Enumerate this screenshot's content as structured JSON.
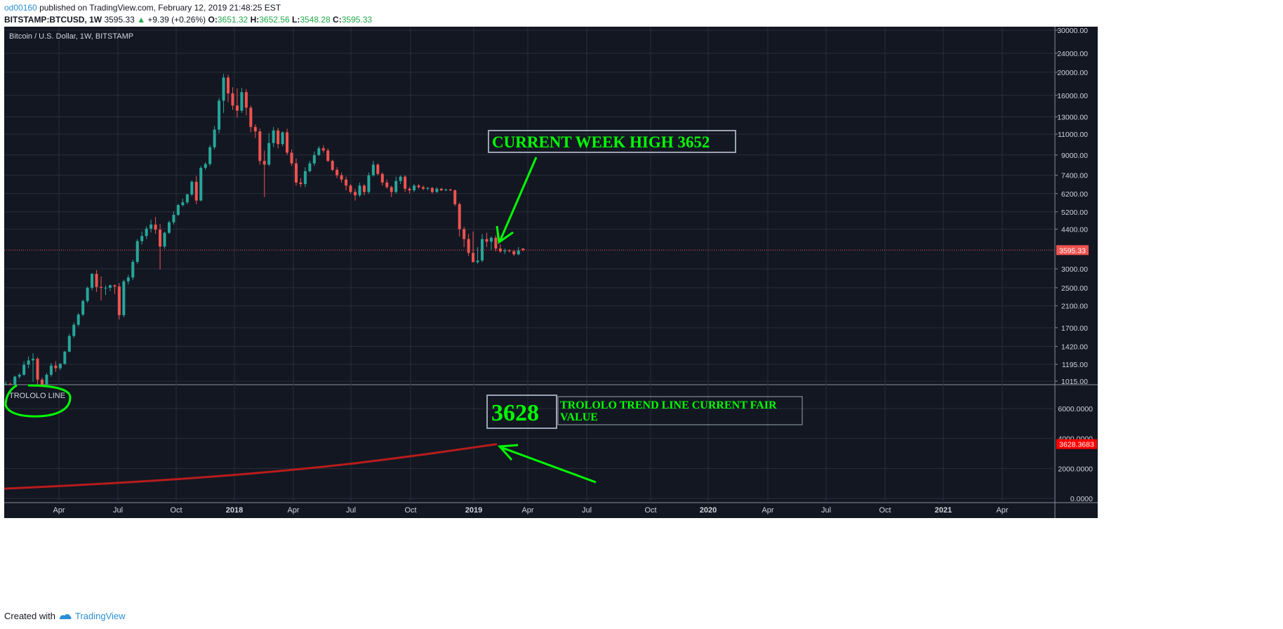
{
  "header": {
    "username": "od00160",
    "published_text": "published on TradingView.com, February 12, 2019 21:48:25 EST",
    "symbol": "BITSTAMP:BTCUSD, 1W",
    "price": "3595.33",
    "change": "+9.39 (+0.26%)",
    "o_label": "O:",
    "o_value": "3651.32",
    "h_label": "H:",
    "h_value": "3652.56",
    "l_label": "L:",
    "l_value": "3548.28",
    "c_label": "C:",
    "c_value": "3595.33"
  },
  "footer": {
    "created_with": "Created with",
    "brand": "TradingView"
  },
  "colors": {
    "background": "#131722",
    "grid": "#2a2e39",
    "up": "#26a69a",
    "down": "#ef5350",
    "annotation": "#00ff00",
    "trend_line": "#b71c1c",
    "price_tag": "#ef5350",
    "trend_tag": "#ff0000"
  },
  "chart_data": [
    {
      "type": "candlestick",
      "title": "Bitcoin / U.S. Dollar, 1W, BITSTAMP",
      "y_scale": "log",
      "y_ticks": [
        "30000.00",
        "24000.00",
        "20000.00",
        "16000.00",
        "13000.00",
        "11000.00",
        "9000.00",
        "7400.00",
        "6200.00",
        "5200.00",
        "4400.00",
        "3000.00",
        "2500.00",
        "2100.00",
        "1700.00",
        "1420.00",
        "1195.00",
        "1015.00"
      ],
      "x_ticks": [
        "Apr",
        "Jul",
        "Oct",
        "2018",
        "Apr",
        "Jul",
        "Oct",
        "2019",
        "Apr",
        "Jul",
        "Oct",
        "2020",
        "Apr",
        "Jul",
        "Oct",
        "2021",
        "Apr"
      ],
      "last_price_label": "3595.33",
      "annotation_text": "CURRENT WEEK HIGH 3652",
      "candles": [
        {
          "o": 960,
          "h": 1010,
          "l": 930,
          "c": 990
        },
        {
          "o": 990,
          "h": 1000,
          "l": 940,
          "c": 970
        },
        {
          "o": 970,
          "h": 1070,
          "l": 960,
          "c": 1060
        },
        {
          "o": 1060,
          "h": 1100,
          "l": 1040,
          "c": 1080
        },
        {
          "o": 1080,
          "h": 1230,
          "l": 1070,
          "c": 1190
        },
        {
          "o": 1190,
          "h": 1290,
          "l": 1150,
          "c": 1240
        },
        {
          "o": 1240,
          "h": 1330,
          "l": 1010,
          "c": 1260
        },
        {
          "o": 1260,
          "h": 1280,
          "l": 960,
          "c": 1030
        },
        {
          "o": 1030,
          "h": 1050,
          "l": 890,
          "c": 960
        },
        {
          "o": 960,
          "h": 1100,
          "l": 930,
          "c": 1080
        },
        {
          "o": 1080,
          "h": 1210,
          "l": 1060,
          "c": 1180
        },
        {
          "o": 1180,
          "h": 1230,
          "l": 1110,
          "c": 1150
        },
        {
          "o": 1150,
          "h": 1210,
          "l": 1130,
          "c": 1200
        },
        {
          "o": 1200,
          "h": 1360,
          "l": 1190,
          "c": 1350
        },
        {
          "o": 1350,
          "h": 1600,
          "l": 1340,
          "c": 1570
        },
        {
          "o": 1570,
          "h": 1790,
          "l": 1540,
          "c": 1750
        },
        {
          "o": 1750,
          "h": 1960,
          "l": 1720,
          "c": 1930
        },
        {
          "o": 1930,
          "h": 2230,
          "l": 1900,
          "c": 2200
        },
        {
          "o": 2200,
          "h": 2530,
          "l": 2160,
          "c": 2500
        },
        {
          "o": 2500,
          "h": 2880,
          "l": 2440,
          "c": 2860
        },
        {
          "o": 2860,
          "h": 2960,
          "l": 2400,
          "c": 2520
        },
        {
          "o": 2520,
          "h": 2790,
          "l": 2210,
          "c": 2500
        },
        {
          "o": 2500,
          "h": 2560,
          "l": 2330,
          "c": 2500
        },
        {
          "o": 2500,
          "h": 2580,
          "l": 2420,
          "c": 2560
        },
        {
          "o": 2560,
          "h": 2580,
          "l": 2350,
          "c": 2530
        },
        {
          "o": 2530,
          "h": 2620,
          "l": 1840,
          "c": 1920
        },
        {
          "o": 1920,
          "h": 2700,
          "l": 1880,
          "c": 2660
        },
        {
          "o": 2660,
          "h": 2830,
          "l": 2580,
          "c": 2760
        },
        {
          "o": 2760,
          "h": 3280,
          "l": 2690,
          "c": 3210
        },
        {
          "o": 3210,
          "h": 4000,
          "l": 3150,
          "c": 3920
        },
        {
          "o": 3920,
          "h": 4300,
          "l": 3800,
          "c": 4120
        },
        {
          "o": 4120,
          "h": 4520,
          "l": 4000,
          "c": 4420
        },
        {
          "o": 4420,
          "h": 4820,
          "l": 4260,
          "c": 4600
        },
        {
          "o": 4600,
          "h": 4950,
          "l": 4210,
          "c": 4380
        },
        {
          "o": 4380,
          "h": 4620,
          "l": 2980,
          "c": 3720
        },
        {
          "o": 3720,
          "h": 4300,
          "l": 3640,
          "c": 4250
        },
        {
          "o": 4250,
          "h": 4780,
          "l": 4200,
          "c": 4700
        },
        {
          "o": 4700,
          "h": 5220,
          "l": 4600,
          "c": 5050
        },
        {
          "o": 5050,
          "h": 5620,
          "l": 5000,
          "c": 5550
        },
        {
          "o": 5550,
          "h": 5900,
          "l": 5480,
          "c": 5700
        },
        {
          "o": 5700,
          "h": 6200,
          "l": 5600,
          "c": 6150
        },
        {
          "o": 6150,
          "h": 7050,
          "l": 6050,
          "c": 6950
        },
        {
          "o": 6950,
          "h": 7350,
          "l": 5600,
          "c": 5800
        },
        {
          "o": 5800,
          "h": 8100,
          "l": 5750,
          "c": 7950
        },
        {
          "o": 7950,
          "h": 8400,
          "l": 7800,
          "c": 8250
        },
        {
          "o": 8250,
          "h": 9900,
          "l": 8100,
          "c": 9700
        },
        {
          "o": 9700,
          "h": 11900,
          "l": 9500,
          "c": 11500
        },
        {
          "o": 11500,
          "h": 15600,
          "l": 11100,
          "c": 15200
        },
        {
          "o": 15200,
          "h": 19700,
          "l": 13500,
          "c": 19000
        },
        {
          "o": 19000,
          "h": 19500,
          "l": 15000,
          "c": 16300
        },
        {
          "o": 16300,
          "h": 17300,
          "l": 13900,
          "c": 14500
        },
        {
          "o": 14500,
          "h": 17100,
          "l": 12900,
          "c": 13800
        },
        {
          "o": 13800,
          "h": 17200,
          "l": 13500,
          "c": 16500
        },
        {
          "o": 16500,
          "h": 17000,
          "l": 13200,
          "c": 14200
        },
        {
          "o": 14200,
          "h": 14500,
          "l": 11200,
          "c": 11800
        },
        {
          "o": 11800,
          "h": 12100,
          "l": 10600,
          "c": 11300
        },
        {
          "o": 11300,
          "h": 11600,
          "l": 8200,
          "c": 8500
        },
        {
          "o": 8500,
          "h": 9400,
          "l": 6000,
          "c": 8200
        },
        {
          "o": 8200,
          "h": 11100,
          "l": 8100,
          "c": 10100
        },
        {
          "o": 10100,
          "h": 11800,
          "l": 9700,
          "c": 11400
        },
        {
          "o": 11400,
          "h": 11700,
          "l": 9600,
          "c": 10000
        },
        {
          "o": 10000,
          "h": 11300,
          "l": 9800,
          "c": 11200
        },
        {
          "o": 11200,
          "h": 11600,
          "l": 9000,
          "c": 9200
        },
        {
          "o": 9200,
          "h": 9500,
          "l": 8100,
          "c": 8300
        },
        {
          "o": 8300,
          "h": 8700,
          "l": 6700,
          "c": 6900
        },
        {
          "o": 6900,
          "h": 7200,
          "l": 6600,
          "c": 6800
        },
        {
          "o": 6800,
          "h": 8000,
          "l": 6600,
          "c": 7700
        },
        {
          "o": 7700,
          "h": 8500,
          "l": 7600,
          "c": 8300
        },
        {
          "o": 8300,
          "h": 9300,
          "l": 8100,
          "c": 9000
        },
        {
          "o": 9000,
          "h": 9800,
          "l": 8900,
          "c": 9600
        },
        {
          "o": 9600,
          "h": 9900,
          "l": 9200,
          "c": 9400
        },
        {
          "o": 9400,
          "h": 9600,
          "l": 8400,
          "c": 8500
        },
        {
          "o": 8500,
          "h": 8600,
          "l": 7700,
          "c": 7800
        },
        {
          "o": 7800,
          "h": 8000,
          "l": 7200,
          "c": 7400
        },
        {
          "o": 7400,
          "h": 7600,
          "l": 6900,
          "c": 7100
        },
        {
          "o": 7100,
          "h": 7300,
          "l": 6400,
          "c": 6700
        },
        {
          "o": 6700,
          "h": 6800,
          "l": 6200,
          "c": 6300
        },
        {
          "o": 6300,
          "h": 6500,
          "l": 5800,
          "c": 6100
        },
        {
          "o": 6100,
          "h": 6900,
          "l": 6000,
          "c": 6700
        },
        {
          "o": 6700,
          "h": 6800,
          "l": 6100,
          "c": 6300
        },
        {
          "o": 6300,
          "h": 7600,
          "l": 6200,
          "c": 7400
        },
        {
          "o": 7400,
          "h": 8500,
          "l": 7300,
          "c": 8200
        },
        {
          "o": 8200,
          "h": 8300,
          "l": 7400,
          "c": 7500
        },
        {
          "o": 7500,
          "h": 7600,
          "l": 6700,
          "c": 6900
        },
        {
          "o": 6900,
          "h": 7100,
          "l": 6500,
          "c": 6600
        },
        {
          "o": 6600,
          "h": 6700,
          "l": 6000,
          "c": 6300
        },
        {
          "o": 6300,
          "h": 7300,
          "l": 6200,
          "c": 7000
        },
        {
          "o": 7000,
          "h": 7400,
          "l": 6800,
          "c": 7300
        },
        {
          "o": 7300,
          "h": 7400,
          "l": 6300,
          "c": 6500
        },
        {
          "o": 6500,
          "h": 6600,
          "l": 6200,
          "c": 6400
        },
        {
          "o": 6400,
          "h": 6800,
          "l": 6300,
          "c": 6700
        },
        {
          "o": 6700,
          "h": 6800,
          "l": 6500,
          "c": 6600
        },
        {
          "o": 6600,
          "h": 6700,
          "l": 6400,
          "c": 6500
        },
        {
          "o": 6500,
          "h": 6600,
          "l": 6400,
          "c": 6550
        },
        {
          "o": 6550,
          "h": 6600,
          "l": 6200,
          "c": 6300
        },
        {
          "o": 6300,
          "h": 6600,
          "l": 6250,
          "c": 6500
        },
        {
          "o": 6500,
          "h": 6550,
          "l": 6350,
          "c": 6400
        },
        {
          "o": 6400,
          "h": 6500,
          "l": 6350,
          "c": 6450
        },
        {
          "o": 6450,
          "h": 6500,
          "l": 6350,
          "c": 6400
        },
        {
          "o": 6400,
          "h": 6450,
          "l": 5500,
          "c": 5600
        },
        {
          "o": 5600,
          "h": 5700,
          "l": 4100,
          "c": 4400
        },
        {
          "o": 4400,
          "h": 4500,
          "l": 3700,
          "c": 4000
        },
        {
          "o": 4000,
          "h": 4200,
          "l": 3400,
          "c": 3500
        },
        {
          "o": 3500,
          "h": 4300,
          "l": 3200,
          "c": 3200
        },
        {
          "o": 3200,
          "h": 3700,
          "l": 3150,
          "c": 3250
        },
        {
          "o": 3250,
          "h": 4200,
          "l": 3200,
          "c": 4000
        },
        {
          "o": 4000,
          "h": 4250,
          "l": 3700,
          "c": 3900
        },
        {
          "o": 3900,
          "h": 4100,
          "l": 3600,
          "c": 4050
        },
        {
          "o": 4050,
          "h": 4150,
          "l": 3550,
          "c": 3650
        },
        {
          "o": 3650,
          "h": 3800,
          "l": 3500,
          "c": 3550
        },
        {
          "o": 3550,
          "h": 3650,
          "l": 3460,
          "c": 3580
        },
        {
          "o": 3580,
          "h": 3620,
          "l": 3520,
          "c": 3560
        },
        {
          "o": 3560,
          "h": 3600,
          "l": 3400,
          "c": 3450
        },
        {
          "o": 3450,
          "h": 3700,
          "l": 3420,
          "c": 3586
        },
        {
          "o": 3651.32,
          "h": 3652.56,
          "l": 3548.28,
          "c": 3595.33
        }
      ]
    },
    {
      "type": "line",
      "title": "TROLOLO LINE",
      "y_ticks": [
        "6000.0000",
        "4000.0000",
        "2000.0000",
        "0.0000"
      ],
      "ylim": [
        0,
        6000
      ],
      "last_value_label": "3628.3683",
      "value_box_text": "3628",
      "annotation_text": "TROLOLO TREND LINE CURRENT FAIR VALUE",
      "series": [
        {
          "values": [
            650,
            760,
            880,
            1010,
            1150,
            1300,
            1470,
            1660,
            1870,
            2100,
            2360,
            2650,
            2960,
            3290,
            3628
          ]
        }
      ]
    }
  ]
}
